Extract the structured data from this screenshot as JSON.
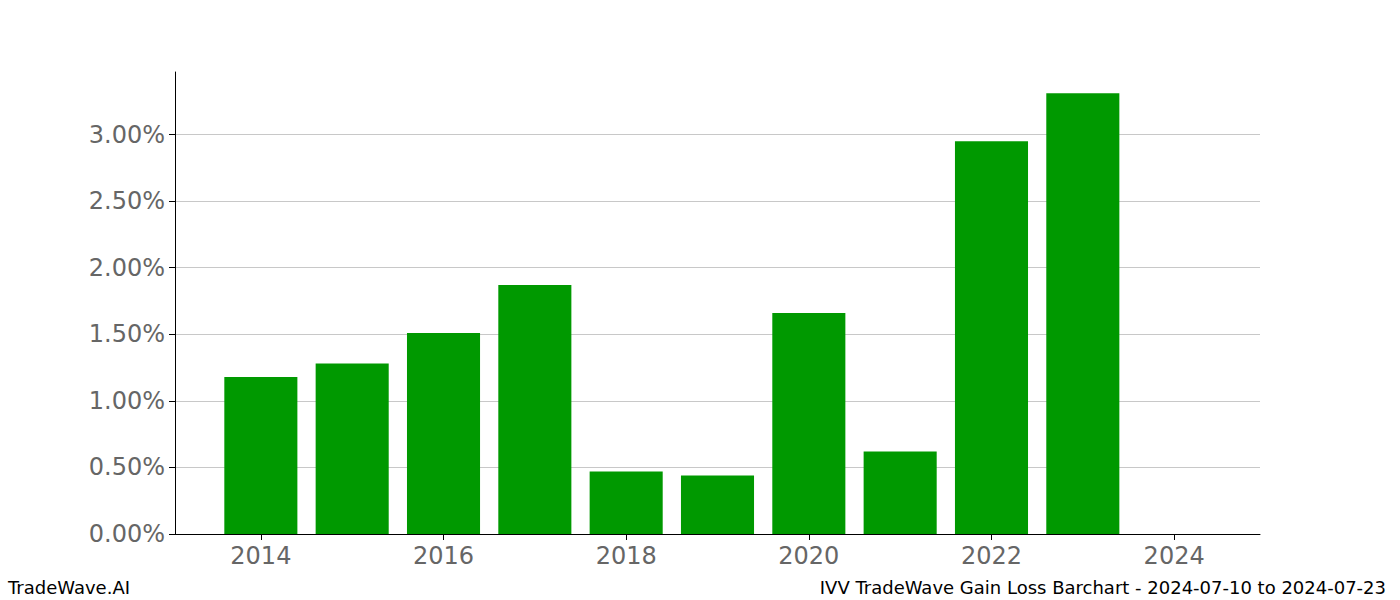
{
  "chart_data": {
    "type": "bar",
    "title": "IVV TradeWave Gain Loss Barchart - 2024-07-10 to 2024-07-23",
    "annotations": [
      "TradeWave.AI"
    ],
    "x": [
      2014,
      2015,
      2016,
      2017,
      2018,
      2019,
      2020,
      2021,
      2022,
      2023,
      2024
    ],
    "values": [
      1.18,
      1.28,
      1.51,
      1.87,
      0.47,
      0.44,
      1.66,
      0.62,
      2.95,
      3.31,
      0
    ],
    "color": "#009900",
    "xlim": [
      2013.06,
      2024.94
    ],
    "xticks": [
      2014,
      2016,
      2018,
      2020,
      2022,
      2024
    ],
    "ylim": [
      0,
      3.47
    ],
    "yticks": [
      {
        "value": 0,
        "label": "0.00%"
      },
      {
        "value": 0.5,
        "label": "0.50%"
      },
      {
        "value": 1,
        "label": "1.00%"
      },
      {
        "value": 1.5,
        "label": "1.50%"
      },
      {
        "value": 2,
        "label": "2.00%"
      },
      {
        "value": 2.5,
        "label": "2.50%"
      },
      {
        "value": 3,
        "label": "3.00%"
      }
    ],
    "grid": true
  }
}
